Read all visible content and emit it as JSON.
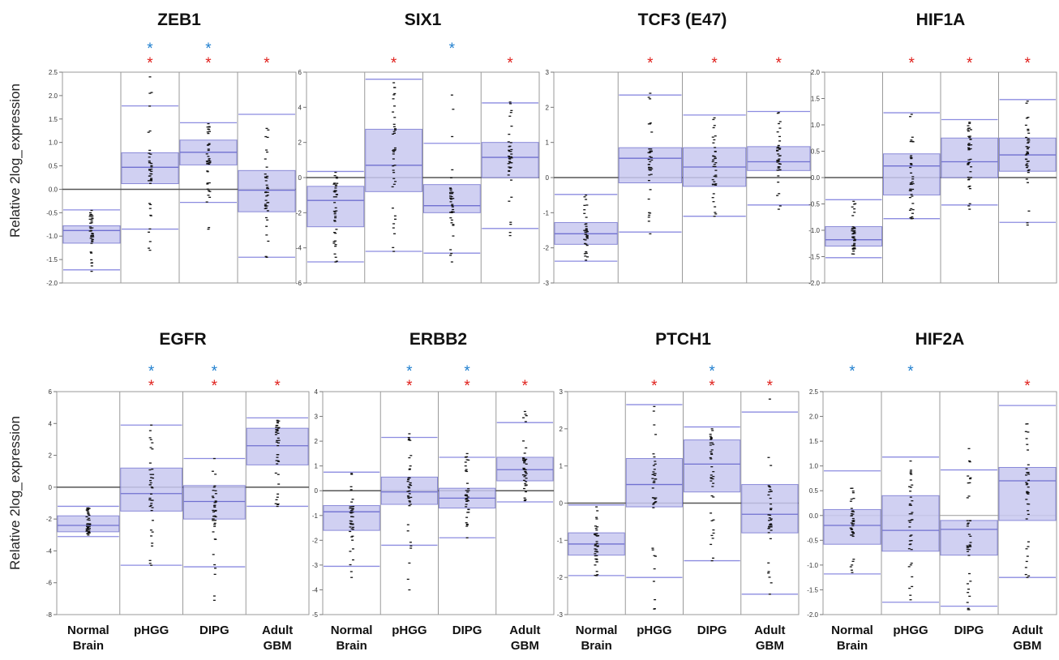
{
  "figure": {
    "ylabel": "Relative 2log_expression",
    "star_colors": {
      "red": "#e0201c",
      "blue": "#1f7fcf"
    },
    "box_fill": "#c8c8f0",
    "box_edge": "#8a8ad8",
    "median_color": "#7070d0",
    "zero_line_color": "#555555"
  },
  "chart_data": [
    {
      "type": "box",
      "title": "ZEB1",
      "categories": [
        "Normal\nBrain",
        "pHGG",
        "DIPG",
        "Adult\nGBM"
      ],
      "ylim": [
        -2.0,
        2.5
      ],
      "yticks": [
        "2.5",
        "2.0",
        "1.5",
        "1.0",
        "0.5",
        "0.0",
        "-0.5",
        "-1.0",
        "-1.5",
        "-2.0"
      ],
      "ytick_values": [
        2.5,
        2.0,
        1.5,
        1.0,
        0.5,
        0.0,
        -0.5,
        -1.0,
        -1.5,
        -2.0
      ],
      "zero_line": true,
      "groups": [
        {
          "whisker_low": -1.72,
          "q1": -1.15,
          "median": -0.88,
          "q3": -0.78,
          "whisker_high": -0.44,
          "min": -1.75,
          "max": -0.45
        },
        {
          "whisker_low": -0.85,
          "q1": 0.12,
          "median": 0.47,
          "q3": 0.78,
          "whisker_high": 1.78,
          "min": -1.3,
          "max": 2.4
        },
        {
          "whisker_low": -0.28,
          "q1": 0.52,
          "median": 0.79,
          "q3": 1.05,
          "whisker_high": 1.42,
          "min": -0.85,
          "max": 1.4
        },
        {
          "whisker_low": -1.45,
          "q1": -0.48,
          "median": -0.02,
          "q3": 0.4,
          "whisker_high": 1.6,
          "min": -1.45,
          "max": 1.3
        }
      ],
      "significance": [
        {
          "red": false,
          "blue": false
        },
        {
          "red": true,
          "blue": true
        },
        {
          "red": true,
          "blue": true
        },
        {
          "red": true,
          "blue": false
        }
      ]
    },
    {
      "type": "box",
      "title": "SIX1",
      "categories": [
        "Normal\nBrain",
        "pHGG",
        "DIPG",
        "Adult\nGBM"
      ],
      "ylim": [
        -6,
        6
      ],
      "yticks": [
        "6",
        "4",
        "2",
        "0",
        "-2",
        "-4",
        "-6"
      ],
      "ytick_values": [
        6,
        4,
        2,
        0,
        -2,
        -4,
        -6
      ],
      "zero_line": true,
      "groups": [
        {
          "whisker_low": -4.8,
          "q1": -2.8,
          "median": -1.3,
          "q3": -0.5,
          "whisker_high": 0.35,
          "min": -4.8,
          "max": 0.3
        },
        {
          "whisker_low": -4.2,
          "q1": -0.8,
          "median": 0.7,
          "q3": 2.75,
          "whisker_high": 5.6,
          "min": -4.2,
          "max": 5.4
        },
        {
          "whisker_low": -4.3,
          "q1": -2.0,
          "median": -1.6,
          "q3": -0.4,
          "whisker_high": 1.95,
          "min": -4.8,
          "max": 4.7
        },
        {
          "whisker_low": -2.9,
          "q1": 0.0,
          "median": 1.15,
          "q3": 2.0,
          "whisker_high": 4.25,
          "min": -3.3,
          "max": 4.3
        }
      ],
      "significance": [
        {
          "red": false,
          "blue": false
        },
        {
          "red": true,
          "blue": false
        },
        {
          "red": false,
          "blue": true
        },
        {
          "red": true,
          "blue": false
        }
      ]
    },
    {
      "type": "box",
      "title": "TCF3 (E47)",
      "categories": [
        "Normal\nBrain",
        "pHGG",
        "DIPG",
        "Adult\nGBM"
      ],
      "ylim": [
        -3,
        3
      ],
      "yticks": [
        "3",
        "2",
        "1",
        "0",
        "-1",
        "-2",
        "-3"
      ],
      "ytick_values": [
        3,
        2,
        1,
        0,
        -1,
        -2,
        -3
      ],
      "zero_line": true,
      "groups": [
        {
          "whisker_low": -2.38,
          "q1": -1.9,
          "median": -1.6,
          "q3": -1.28,
          "whisker_high": -0.48,
          "min": -2.35,
          "max": -0.5
        },
        {
          "whisker_low": -1.55,
          "q1": -0.15,
          "median": 0.55,
          "q3": 0.85,
          "whisker_high": 2.35,
          "min": -1.6,
          "max": 2.4
        },
        {
          "whisker_low": -1.1,
          "q1": -0.25,
          "median": 0.3,
          "q3": 0.85,
          "whisker_high": 1.78,
          "min": -1.1,
          "max": 1.7
        },
        {
          "whisker_low": -0.78,
          "q1": 0.2,
          "median": 0.45,
          "q3": 0.88,
          "whisker_high": 1.88,
          "min": -0.9,
          "max": 1.85
        }
      ],
      "significance": [
        {
          "red": false,
          "blue": false
        },
        {
          "red": true,
          "blue": false
        },
        {
          "red": true,
          "blue": false
        },
        {
          "red": true,
          "blue": false
        }
      ]
    },
    {
      "type": "box",
      "title": "HIF1A",
      "categories": [
        "Normal\nBrain",
        "pHGG",
        "DIPG",
        "Adult\nGBM"
      ],
      "ylim": [
        -2.0,
        2.0
      ],
      "yticks": [
        "2.0",
        "1.5",
        "1.0",
        "0.5",
        "0.0",
        "-0.5",
        "-1.0",
        "-1.5",
        "-2.0"
      ],
      "ytick_values": [
        2.0,
        1.5,
        1.0,
        0.5,
        0.0,
        -0.5,
        -1.0,
        -1.5,
        -2.0
      ],
      "zero_line": true,
      "groups": [
        {
          "whisker_low": -1.52,
          "q1": -1.3,
          "median": -1.18,
          "q3": -0.93,
          "whisker_high": -0.42,
          "min": -1.45,
          "max": -0.45
        },
        {
          "whisker_low": -0.78,
          "q1": -0.33,
          "median": 0.22,
          "q3": 0.45,
          "whisker_high": 1.23,
          "min": -0.78,
          "max": 1.2
        },
        {
          "whisker_low": -0.52,
          "q1": 0.0,
          "median": 0.3,
          "q3": 0.75,
          "whisker_high": 1.1,
          "min": -0.6,
          "max": 1.05
        },
        {
          "whisker_low": -0.85,
          "q1": 0.12,
          "median": 0.43,
          "q3": 0.75,
          "whisker_high": 1.48,
          "min": -0.9,
          "max": 1.45
        }
      ],
      "significance": [
        {
          "red": false,
          "blue": false
        },
        {
          "red": true,
          "blue": false
        },
        {
          "red": true,
          "blue": false
        },
        {
          "red": true,
          "blue": false
        }
      ]
    },
    {
      "type": "box",
      "title": "EGFR",
      "categories": [
        "Normal\nBrain",
        "pHGG",
        "DIPG",
        "Adult\nGBM"
      ],
      "ylim": [
        -8,
        6
      ],
      "yticks": [
        "6",
        "4",
        "2",
        "0",
        "-2",
        "-4",
        "-6",
        "-8"
      ],
      "ytick_values": [
        6,
        4,
        2,
        0,
        -2,
        -4,
        -6,
        -8
      ],
      "zero_line": true,
      "groups": [
        {
          "whisker_low": -3.1,
          "q1": -2.8,
          "median": -2.4,
          "q3": -1.8,
          "whisker_high": -1.2,
          "min": -3.0,
          "max": -1.3
        },
        {
          "whisker_low": -4.9,
          "q1": -1.5,
          "median": -0.4,
          "q3": 1.2,
          "whisker_high": 3.9,
          "min": -4.9,
          "max": 3.9
        },
        {
          "whisker_low": -5.0,
          "q1": -2.0,
          "median": -0.9,
          "q3": 0.1,
          "whisker_high": 1.8,
          "min": -7.1,
          "max": 1.8
        },
        {
          "whisker_low": -1.2,
          "q1": 1.4,
          "median": 2.6,
          "q3": 3.7,
          "whisker_high": 4.35,
          "min": -1.2,
          "max": 4.2
        }
      ],
      "significance": [
        {
          "red": false,
          "blue": false
        },
        {
          "red": true,
          "blue": true
        },
        {
          "red": true,
          "blue": true
        },
        {
          "red": true,
          "blue": false
        }
      ]
    },
    {
      "type": "box",
      "title": "ERBB2",
      "categories": [
        "Normal\nBrain",
        "pHGG",
        "DIPG",
        "Adult\nGBM"
      ],
      "ylim": [
        -5,
        4
      ],
      "yticks": [
        "4",
        "3",
        "2",
        "1",
        "0",
        "-1",
        "-2",
        "-3",
        "-4",
        "-5"
      ],
      "ytick_values": [
        4,
        3,
        2,
        1,
        0,
        -1,
        -2,
        -3,
        -4,
        -5
      ],
      "zero_line": true,
      "groups": [
        {
          "whisker_low": -3.05,
          "q1": -1.6,
          "median": -0.85,
          "q3": -0.6,
          "whisker_high": 0.75,
          "min": -3.5,
          "max": 0.7
        },
        {
          "whisker_low": -2.2,
          "q1": -0.55,
          "median": -0.05,
          "q3": 0.55,
          "whisker_high": 2.15,
          "min": -4.0,
          "max": 2.3
        },
        {
          "whisker_low": -1.9,
          "q1": -0.7,
          "median": -0.3,
          "q3": 0.1,
          "whisker_high": 1.35,
          "min": -1.9,
          "max": 1.5
        },
        {
          "whisker_low": -0.45,
          "q1": 0.4,
          "median": 0.85,
          "q3": 1.35,
          "whisker_high": 2.75,
          "min": -0.4,
          "max": 3.2
        }
      ],
      "significance": [
        {
          "red": false,
          "blue": false
        },
        {
          "red": true,
          "blue": true
        },
        {
          "red": true,
          "blue": true
        },
        {
          "red": true,
          "blue": false
        }
      ]
    },
    {
      "type": "box",
      "title": "PTCH1",
      "categories": [
        "Normal\nBrain",
        "pHGG",
        "DIPG",
        "Adult\nGBM"
      ],
      "ylim": [
        -3,
        3
      ],
      "yticks": [
        "3",
        "2",
        "1",
        "0",
        "-1",
        "-2",
        "-3"
      ],
      "ytick_values": [
        3,
        2,
        1,
        0,
        -1,
        -2,
        -3
      ],
      "zero_line": true,
      "groups": [
        {
          "whisker_low": -1.95,
          "q1": -1.4,
          "median": -1.1,
          "q3": -0.8,
          "whisker_high": -0.05,
          "min": -1.95,
          "max": -0.1
        },
        {
          "whisker_low": -2.0,
          "q1": -0.1,
          "median": 0.5,
          "q3": 1.2,
          "whisker_high": 2.65,
          "min": -2.85,
          "max": 2.6
        },
        {
          "whisker_low": -1.55,
          "q1": 0.3,
          "median": 1.05,
          "q3": 1.7,
          "whisker_high": 2.05,
          "min": -1.55,
          "max": 2.0
        },
        {
          "whisker_low": -2.45,
          "q1": -0.8,
          "median": -0.3,
          "q3": 0.5,
          "whisker_high": 2.45,
          "min": -2.45,
          "max": 2.8
        }
      ],
      "significance": [
        {
          "red": false,
          "blue": false
        },
        {
          "red": true,
          "blue": false
        },
        {
          "red": true,
          "blue": true
        },
        {
          "red": true,
          "blue": false
        }
      ]
    },
    {
      "type": "box",
      "title": "HIF2A",
      "categories": [
        "Normal\nBrain",
        "pHGG",
        "DIPG",
        "Adult\nGBM"
      ],
      "ylim": [
        -2.0,
        2.5
      ],
      "yticks": [
        "2.5",
        "2.0",
        "1.5",
        "1.0",
        "0.5",
        "0.0",
        "-0.5",
        "-1.0",
        "-1.5",
        "-2.0"
      ],
      "ytick_values": [
        2.5,
        2.0,
        1.5,
        1.0,
        0.5,
        0.0,
        -0.5,
        -1.0,
        -1.5,
        -2.0
      ],
      "zero_line": false,
      "groups": [
        {
          "whisker_low": -1.18,
          "q1": -0.58,
          "median": -0.2,
          "q3": 0.12,
          "whisker_high": 0.9,
          "min": -1.15,
          "max": 0.55
        },
        {
          "whisker_low": -1.75,
          "q1": -0.72,
          "median": -0.3,
          "q3": 0.4,
          "whisker_high": 1.18,
          "min": -1.7,
          "max": 1.1
        },
        {
          "whisker_low": -1.83,
          "q1": -0.8,
          "median": -0.28,
          "q3": -0.1,
          "whisker_high": 0.92,
          "min": -1.9,
          "max": 1.35
        },
        {
          "whisker_low": -1.25,
          "q1": -0.1,
          "median": 0.7,
          "q3": 0.97,
          "whisker_high": 2.22,
          "min": -1.25,
          "max": 1.85
        }
      ],
      "significance": [
        {
          "red": false,
          "blue": true
        },
        {
          "red": false,
          "blue": true
        },
        {
          "red": false,
          "blue": false
        },
        {
          "red": true,
          "blue": false
        }
      ]
    }
  ]
}
